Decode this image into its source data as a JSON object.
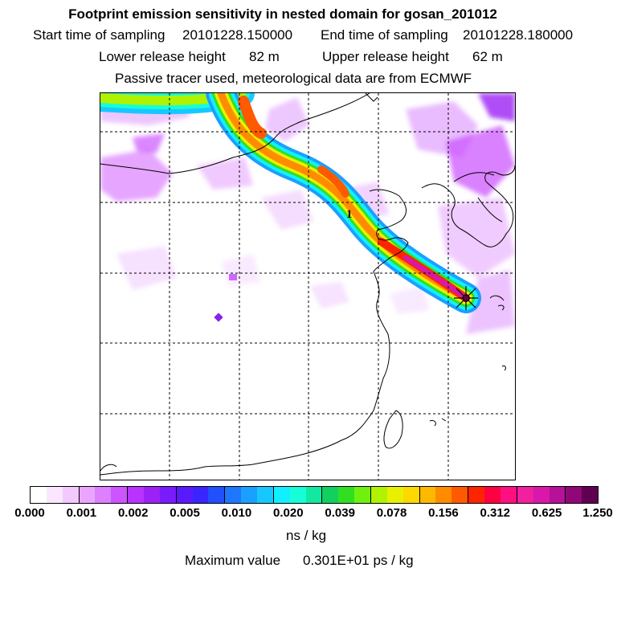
{
  "header": {
    "title": "Footprint emission sensitivity in nested domain for gosan_201012",
    "start_label": "Start time of sampling",
    "start_value": "20101228.150000",
    "end_label": "End time of sampling",
    "end_value": "20101228.180000",
    "lower_label": "Lower release height",
    "lower_value": "82 m",
    "upper_label": "Upper release height",
    "upper_value": "62 m",
    "note": "Passive tracer used, meteorological data are from ECMWF"
  },
  "map": {
    "release_marker_label": "1",
    "receptor": "star"
  },
  "colorbar": {
    "ticks": [
      "0.000",
      "0.001",
      "0.002",
      "0.005",
      "0.010",
      "0.020",
      "0.039",
      "0.078",
      "0.156",
      "0.312",
      "0.625",
      "1.250"
    ],
    "colors": [
      "#ffffff",
      "#fbe6ff",
      "#f3c8ff",
      "#eaa6ff",
      "#dd7fff",
      "#cc55ff",
      "#b833ff",
      "#9b22f4",
      "#7a1bff",
      "#5a1aff",
      "#3a24ff",
      "#2050ff",
      "#1d78ff",
      "#1aa0ff",
      "#17c8ff",
      "#12f0ff",
      "#14ffd8",
      "#12e8a0",
      "#10d060",
      "#30e020",
      "#70f010",
      "#b0f200",
      "#e8f000",
      "#ffd800",
      "#ffb800",
      "#ff8c00",
      "#ff5a00",
      "#ff2400",
      "#ff0040",
      "#ff1080",
      "#f020a0",
      "#d818a8",
      "#b81098",
      "#900878",
      "#600050"
    ],
    "unit": "ns / kg"
  },
  "footer": {
    "max_label": "Maximum value",
    "max_value": "0.301E+01 ps / kg"
  }
}
